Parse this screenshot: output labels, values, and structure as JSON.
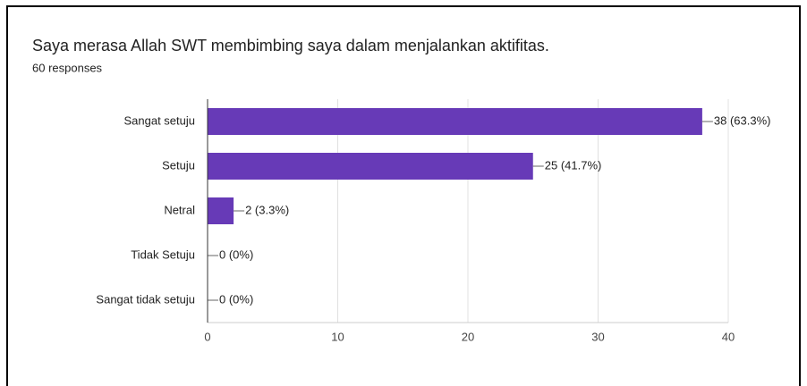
{
  "chart_data": {
    "type": "bar",
    "orientation": "horizontal",
    "title": "Saya merasa Allah SWT membimbing saya dalam menjalankan aktifitas.",
    "subtitle": "60 responses",
    "categories": [
      "Sangat setuju",
      "Setuju",
      "Netral",
      "Tidak Setuju",
      "Sangat tidak setuju"
    ],
    "values": [
      38,
      25,
      2,
      0,
      0
    ],
    "value_labels": [
      "38 (63.3%)",
      "25 (41.7%)",
      "2 (3.3%)",
      "0 (0%)",
      "0 (0%)"
    ],
    "color": "#673ab7",
    "xlim": [
      0,
      40
    ],
    "xticks": [
      0,
      10,
      20,
      30,
      40
    ],
    "grid": true
  }
}
